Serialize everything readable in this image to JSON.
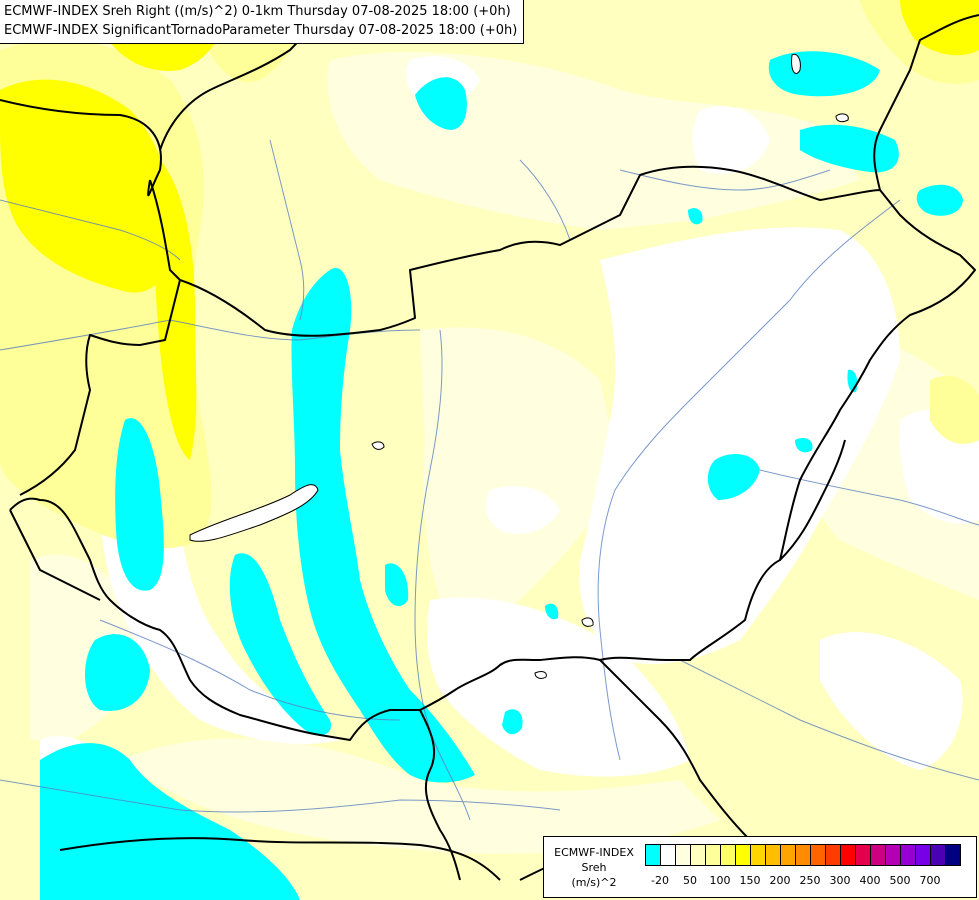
{
  "header": {
    "line1": "ECMWF-INDEX Sreh Right ((m/s)^2) 0-1km Thursday 07-08-2025 18:00 (+0h)",
    "line2": "ECMWF-INDEX SignificantTornadoParameter Thursday 07-08-2025 18:00 (+0h)"
  },
  "legend": {
    "line1": "ECMWF-INDEX",
    "line2": "Sreh",
    "line3": "(m/s)^2",
    "colors": [
      "#00ffff",
      "#ffffff",
      "#ffffe0",
      "#ffffc0",
      "#ffff99",
      "#ffff66",
      "#ffff00",
      "#ffd700",
      "#ffbf00",
      "#ffa500",
      "#ff8c00",
      "#ff6400",
      "#ff3c00",
      "#ff0000",
      "#e6004c",
      "#cc0080",
      "#b400b4",
      "#9600d2",
      "#7800e6",
      "#4b00b4",
      "#000080"
    ],
    "ticks": [
      "-20",
      "50",
      "100",
      "150",
      "200",
      "250",
      "300",
      "400",
      "500",
      "700"
    ]
  },
  "map_colors": {
    "cyan": "#00ffff",
    "light": "#ffffe0",
    "pale": "#ffffc0",
    "mid": "#ffff99",
    "strong": "#ffff00",
    "border": "#000000",
    "river": "#5a7fbf"
  }
}
